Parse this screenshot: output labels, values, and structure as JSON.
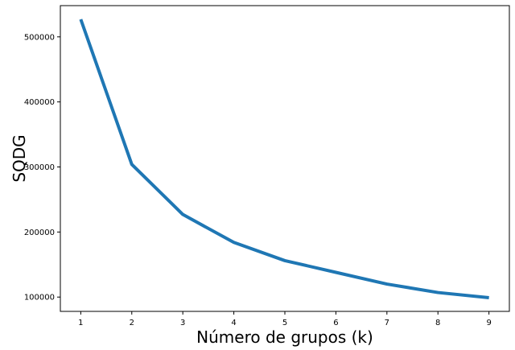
{
  "chart_data": {
    "type": "line",
    "title": "",
    "xlabel": "Número de grupos (k)",
    "ylabel": "SQDG",
    "x": [
      1,
      2,
      3,
      4,
      5,
      6,
      7,
      8,
      9
    ],
    "series": [
      {
        "name": "",
        "color": "#1f77b4",
        "values": [
          527000,
          304000,
          227000,
          184000,
          156000,
          138000,
          120000,
          107000,
          99000
        ]
      }
    ],
    "xticks": [
      1,
      2,
      3,
      4,
      5,
      6,
      7,
      8,
      9
    ],
    "xtick_labels": [
      "1",
      "2",
      "3",
      "4",
      "5",
      "6",
      "7",
      "8",
      "9"
    ],
    "yticks": [
      100000,
      200000,
      300000,
      400000,
      500000
    ],
    "ytick_labels": [
      "100000",
      "200000",
      "300000",
      "400000",
      "500000"
    ],
    "xlim": [
      0.6,
      9.4
    ],
    "ylim": [
      78000,
      548000
    ],
    "grid": false,
    "legend": "none"
  }
}
